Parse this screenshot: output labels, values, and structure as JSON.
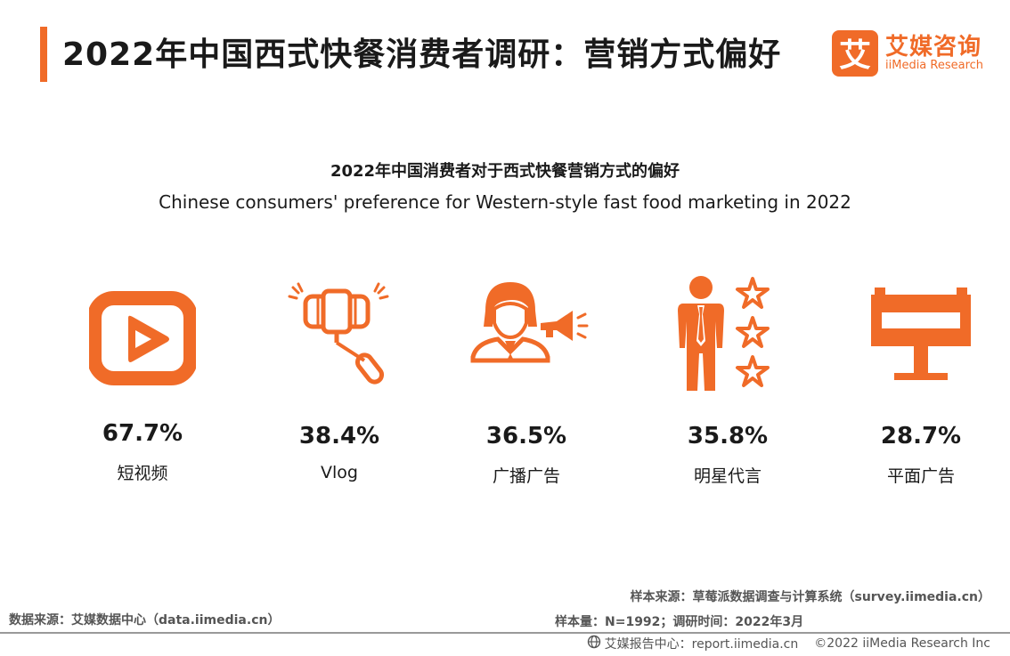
{
  "header": {
    "title": "2022年中国西式快餐消费者调研：营销方式偏好",
    "logo_cn": "艾媒咨询",
    "logo_en": "iiMedia Research",
    "logo_mark": "艾"
  },
  "colors": {
    "accent": "#f06b28"
  },
  "chart_data": {
    "type": "bar",
    "title": "2022年中国消费者对于西式快餐营销方式的偏好",
    "subtitle": "Chinese consumers' preference for Western-style fast food marketing in 2022",
    "categories": [
      "短视频",
      "Vlog",
      "广播广告",
      "明星代言",
      "平面广告"
    ],
    "values": [
      67.7,
      38.4,
      36.5,
      35.8,
      28.7
    ],
    "value_labels": [
      "67.7%",
      "38.4%",
      "36.5%",
      "35.8%",
      "28.7%"
    ],
    "icons": [
      "video-play-icon",
      "selfie-stick-icon",
      "announcer-megaphone-icon",
      "celebrity-stars-icon",
      "billboard-icon"
    ]
  },
  "footer": {
    "source_left": "数据来源：艾媒数据中心（data.iimedia.cn）",
    "sample_source": "样本来源：草莓派数据调查与计算系统（survey.iimedia.cn）",
    "sample_size": "样本量：N=1992；调研时间：2022年3月",
    "report_center": "艾媒报告中心：report.iimedia.cn",
    "copyright": "©2022  iiMedia Research Inc"
  }
}
